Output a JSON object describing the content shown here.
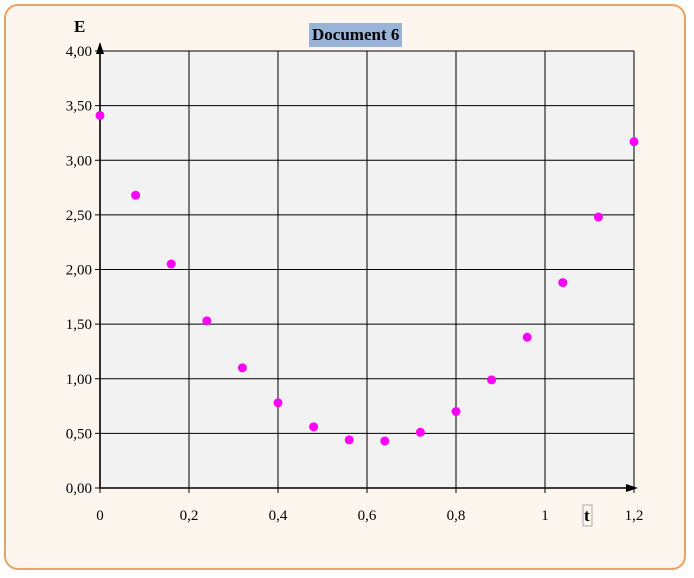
{
  "chart_data": {
    "type": "scatter",
    "title": "Document 6",
    "xlabel": "t",
    "ylabel": "E",
    "xlim": [
      0,
      1.2
    ],
    "ylim": [
      0,
      4
    ],
    "xticks": [
      {
        "value": 0,
        "label": "0"
      },
      {
        "value": 0.2,
        "label": "0,2"
      },
      {
        "value": 0.4,
        "label": "0,4"
      },
      {
        "value": 0.6,
        "label": "0,6"
      },
      {
        "value": 0.8,
        "label": "0,8"
      },
      {
        "value": 1.0,
        "label": "1"
      },
      {
        "value": 1.2,
        "label": "1,2"
      }
    ],
    "yticks": [
      {
        "value": 0,
        "label": "0,00"
      },
      {
        "value": 0.5,
        "label": "0,50"
      },
      {
        "value": 1.0,
        "label": "1,00"
      },
      {
        "value": 1.5,
        "label": "1,50"
      },
      {
        "value": 2.0,
        "label": "2,00"
      },
      {
        "value": 2.5,
        "label": "2,50"
      },
      {
        "value": 3.0,
        "label": "3,00"
      },
      {
        "value": 3.5,
        "label": "3,50"
      },
      {
        "value": 4.0,
        "label": "4,00"
      }
    ],
    "xgrid": [
      0.2,
      0.4,
      0.6,
      0.8,
      1.0,
      1.2
    ],
    "ygrid": [
      0.5,
      1.0,
      1.5,
      2.0,
      2.5,
      3.0,
      3.5,
      4.0
    ],
    "grid": true,
    "legend": "none",
    "series": [
      {
        "color": "#ff00ff",
        "x": [
          0,
          0.08,
          0.16,
          0.24,
          0.32,
          0.4,
          0.48,
          0.56,
          0.64,
          0.72,
          0.8,
          0.88,
          0.96,
          1.04,
          1.12,
          1.2
        ],
        "y": [
          3.41,
          2.68,
          2.05,
          1.53,
          1.1,
          0.78,
          0.56,
          0.44,
          0.43,
          0.51,
          0.7,
          0.99,
          1.38,
          1.88,
          2.48,
          3.17
        ]
      }
    ],
    "colors": {
      "frame_border": "#f0a060",
      "background": "#fdf6ef",
      "plot_area": "#f2f2f2",
      "title_bg": "#99b4d8",
      "grid": "#000000"
    }
  }
}
